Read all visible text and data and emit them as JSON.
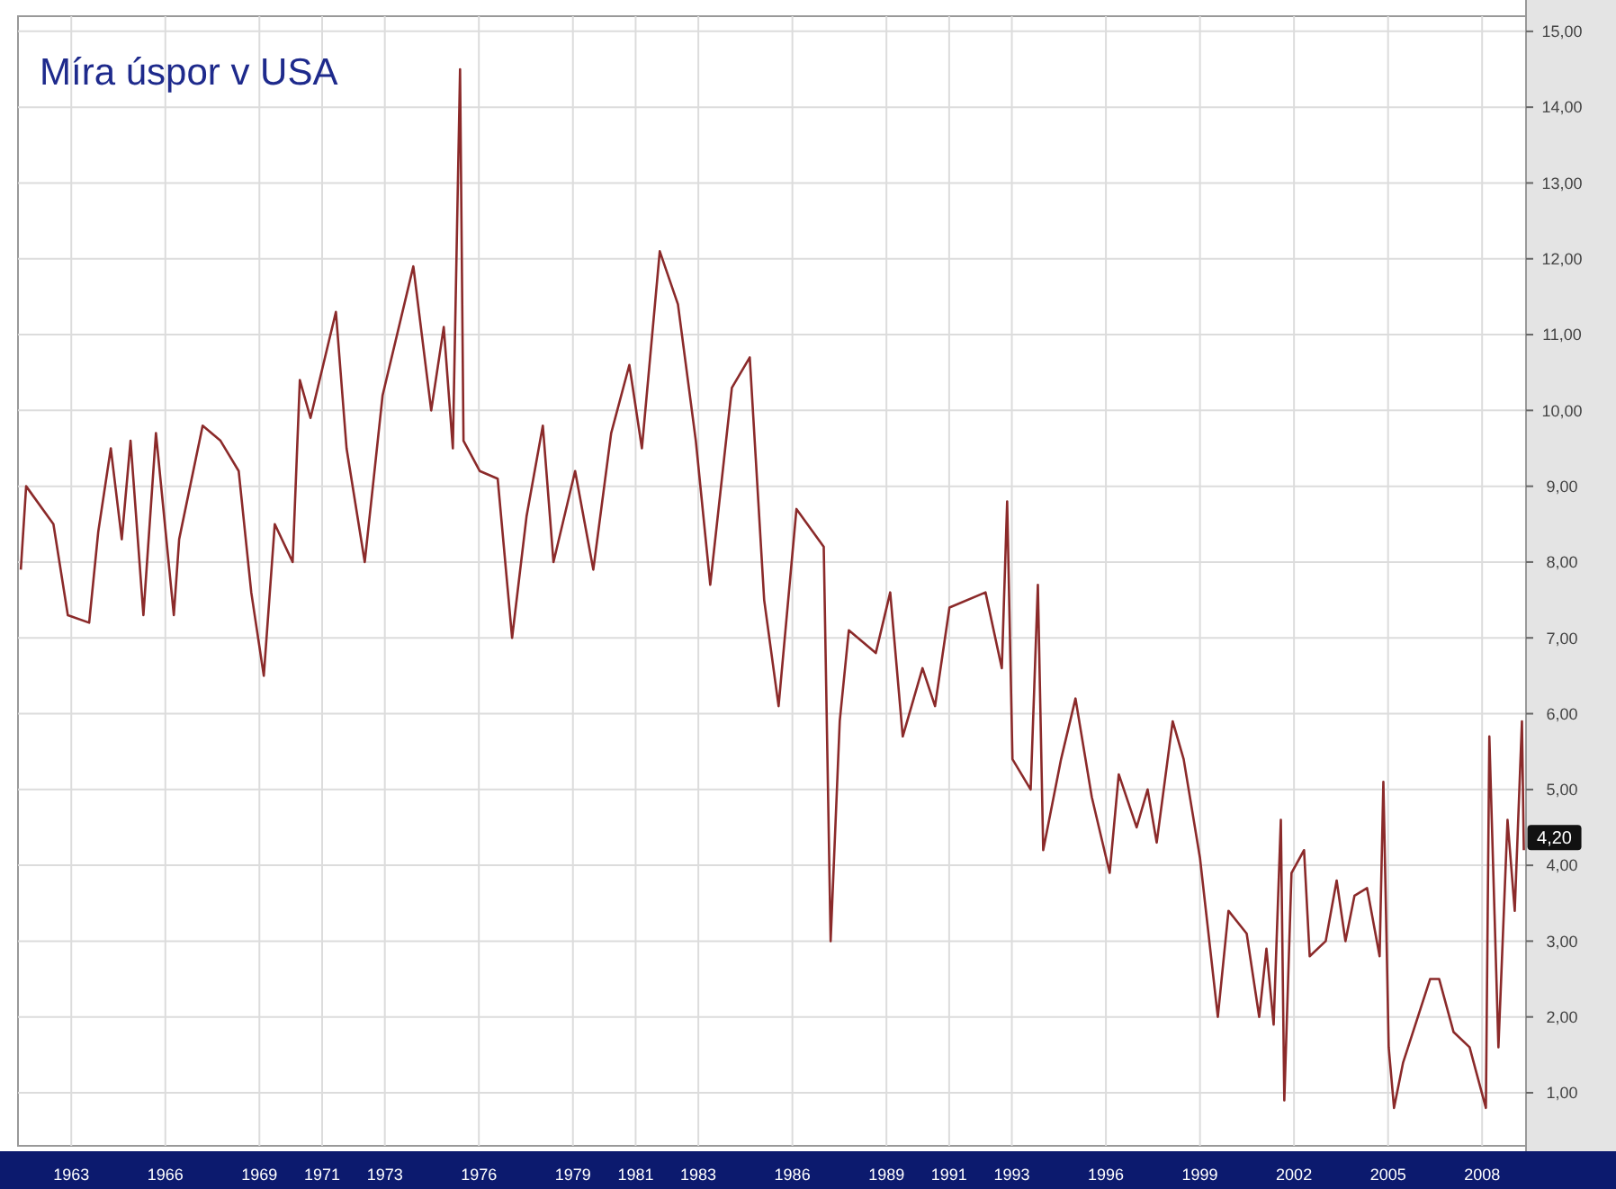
{
  "chart_data": {
    "type": "line",
    "title": "Míra úspor v USA",
    "xlim": [
      1961.3,
      2009.4
    ],
    "ylim": [
      0.3,
      15.2
    ],
    "xticks": [
      1963,
      1966,
      1969,
      1971,
      1973,
      1976,
      1979,
      1981,
      1983,
      1986,
      1989,
      1991,
      1993,
      1996,
      1999,
      2002,
      2005,
      2008
    ],
    "yticks": [
      {
        "value": 1,
        "label": "1,00"
      },
      {
        "value": 2,
        "label": "2,00"
      },
      {
        "value": 3,
        "label": "3,00"
      },
      {
        "value": 4,
        "label": "4,00"
      },
      {
        "value": 5,
        "label": "5,00"
      },
      {
        "value": 6,
        "label": "6,00"
      },
      {
        "value": 7,
        "label": "7,00"
      },
      {
        "value": 8,
        "label": "8,00"
      },
      {
        "value": 9,
        "label": "9,00"
      },
      {
        "value": 10,
        "label": "10,00"
      },
      {
        "value": 11,
        "label": "11,00"
      },
      {
        "value": 12,
        "label": "12,00"
      },
      {
        "value": 13,
        "label": "13,00"
      },
      {
        "value": 14,
        "label": "14,00"
      },
      {
        "value": 15,
        "label": "15,00"
      }
    ],
    "grid": true,
    "marker": "none",
    "line_style": "solid",
    "annotations": [
      {
        "text": "4,20",
        "x": 2009.33,
        "y": 4.2
      }
    ],
    "series": [
      {
        "color": "#8b2a2a",
        "x": [
          1961.39,
          1961.56,
          1962.43,
          1962.89,
          1963.57,
          1963.86,
          1964.26,
          1964.61,
          1964.89,
          1965.3,
          1965.7,
          1966.27,
          1966.44,
          1967.19,
          1967.76,
          1968.34,
          1968.74,
          1969.14,
          1969.49,
          1970.06,
          1970.29,
          1970.63,
          1971.44,
          1971.78,
          1972.36,
          1972.93,
          1973.91,
          1974.48,
          1974.88,
          1975.17,
          1975.4,
          1975.51,
          1976.03,
          1976.6,
          1977.06,
          1977.52,
          1978.04,
          1978.38,
          1979.07,
          1979.65,
          1980.22,
          1980.8,
          1981.2,
          1981.77,
          1982.35,
          1982.92,
          1983.38,
          1984.07,
          1984.64,
          1985.1,
          1985.56,
          1986.13,
          1987.0,
          1987.22,
          1987.51,
          1987.8,
          1988.66,
          1989.12,
          1989.52,
          1990.15,
          1990.55,
          1991.01,
          1992.16,
          1992.68,
          1992.85,
          1993.02,
          1993.6,
          1993.83,
          1994.0,
          1994.57,
          1995.03,
          1995.55,
          1996.12,
          1996.41,
          1996.98,
          1997.33,
          1997.62,
          1998.13,
          1998.48,
          1999.0,
          1999.57,
          1999.91,
          2000.49,
          2000.89,
          2001.12,
          2001.35,
          2001.58,
          2001.69,
          2001.92,
          2002.32,
          2002.5,
          2003.01,
          2003.36,
          2003.64,
          2003.93,
          2004.33,
          2004.73,
          2004.85,
          2005.02,
          2005.19,
          2005.48,
          2006.34,
          2006.63,
          2007.09,
          2007.6,
          2008.12,
          2008.23,
          2008.52,
          2008.81,
          2009.04,
          2009.27,
          2009.33
        ],
        "values": [
          7.9,
          9.0,
          8.5,
          7.3,
          7.2,
          8.4,
          9.5,
          8.3,
          9.6,
          7.3,
          9.7,
          7.3,
          8.3,
          9.8,
          9.6,
          9.2,
          7.6,
          6.5,
          8.5,
          8.0,
          10.4,
          9.9,
          11.3,
          9.5,
          8.0,
          10.2,
          11.9,
          10.0,
          11.1,
          9.5,
          14.5,
          9.6,
          9.2,
          9.1,
          7.0,
          8.6,
          9.8,
          8.0,
          9.2,
          7.9,
          9.7,
          10.6,
          9.5,
          12.1,
          11.4,
          9.6,
          7.7,
          10.3,
          10.7,
          7.5,
          6.1,
          8.7,
          8.2,
          3.0,
          5.9,
          7.1,
          6.8,
          7.6,
          5.7,
          6.6,
          6.1,
          7.4,
          7.6,
          6.6,
          8.8,
          5.4,
          5.0,
          7.7,
          4.2,
          5.4,
          6.2,
          4.9,
          3.9,
          5.2,
          4.5,
          5.0,
          4.3,
          5.9,
          5.4,
          4.1,
          2.0,
          3.4,
          3.1,
          2.0,
          2.9,
          1.9,
          4.6,
          0.9,
          3.9,
          4.2,
          2.8,
          3.0,
          3.8,
          3.0,
          3.6,
          3.7,
          2.8,
          5.1,
          1.6,
          0.8,
          1.4,
          2.5,
          2.5,
          1.8,
          1.6,
          0.8,
          5.7,
          1.6,
          4.6,
          3.4,
          5.9,
          4.2
        ]
      }
    ]
  }
}
